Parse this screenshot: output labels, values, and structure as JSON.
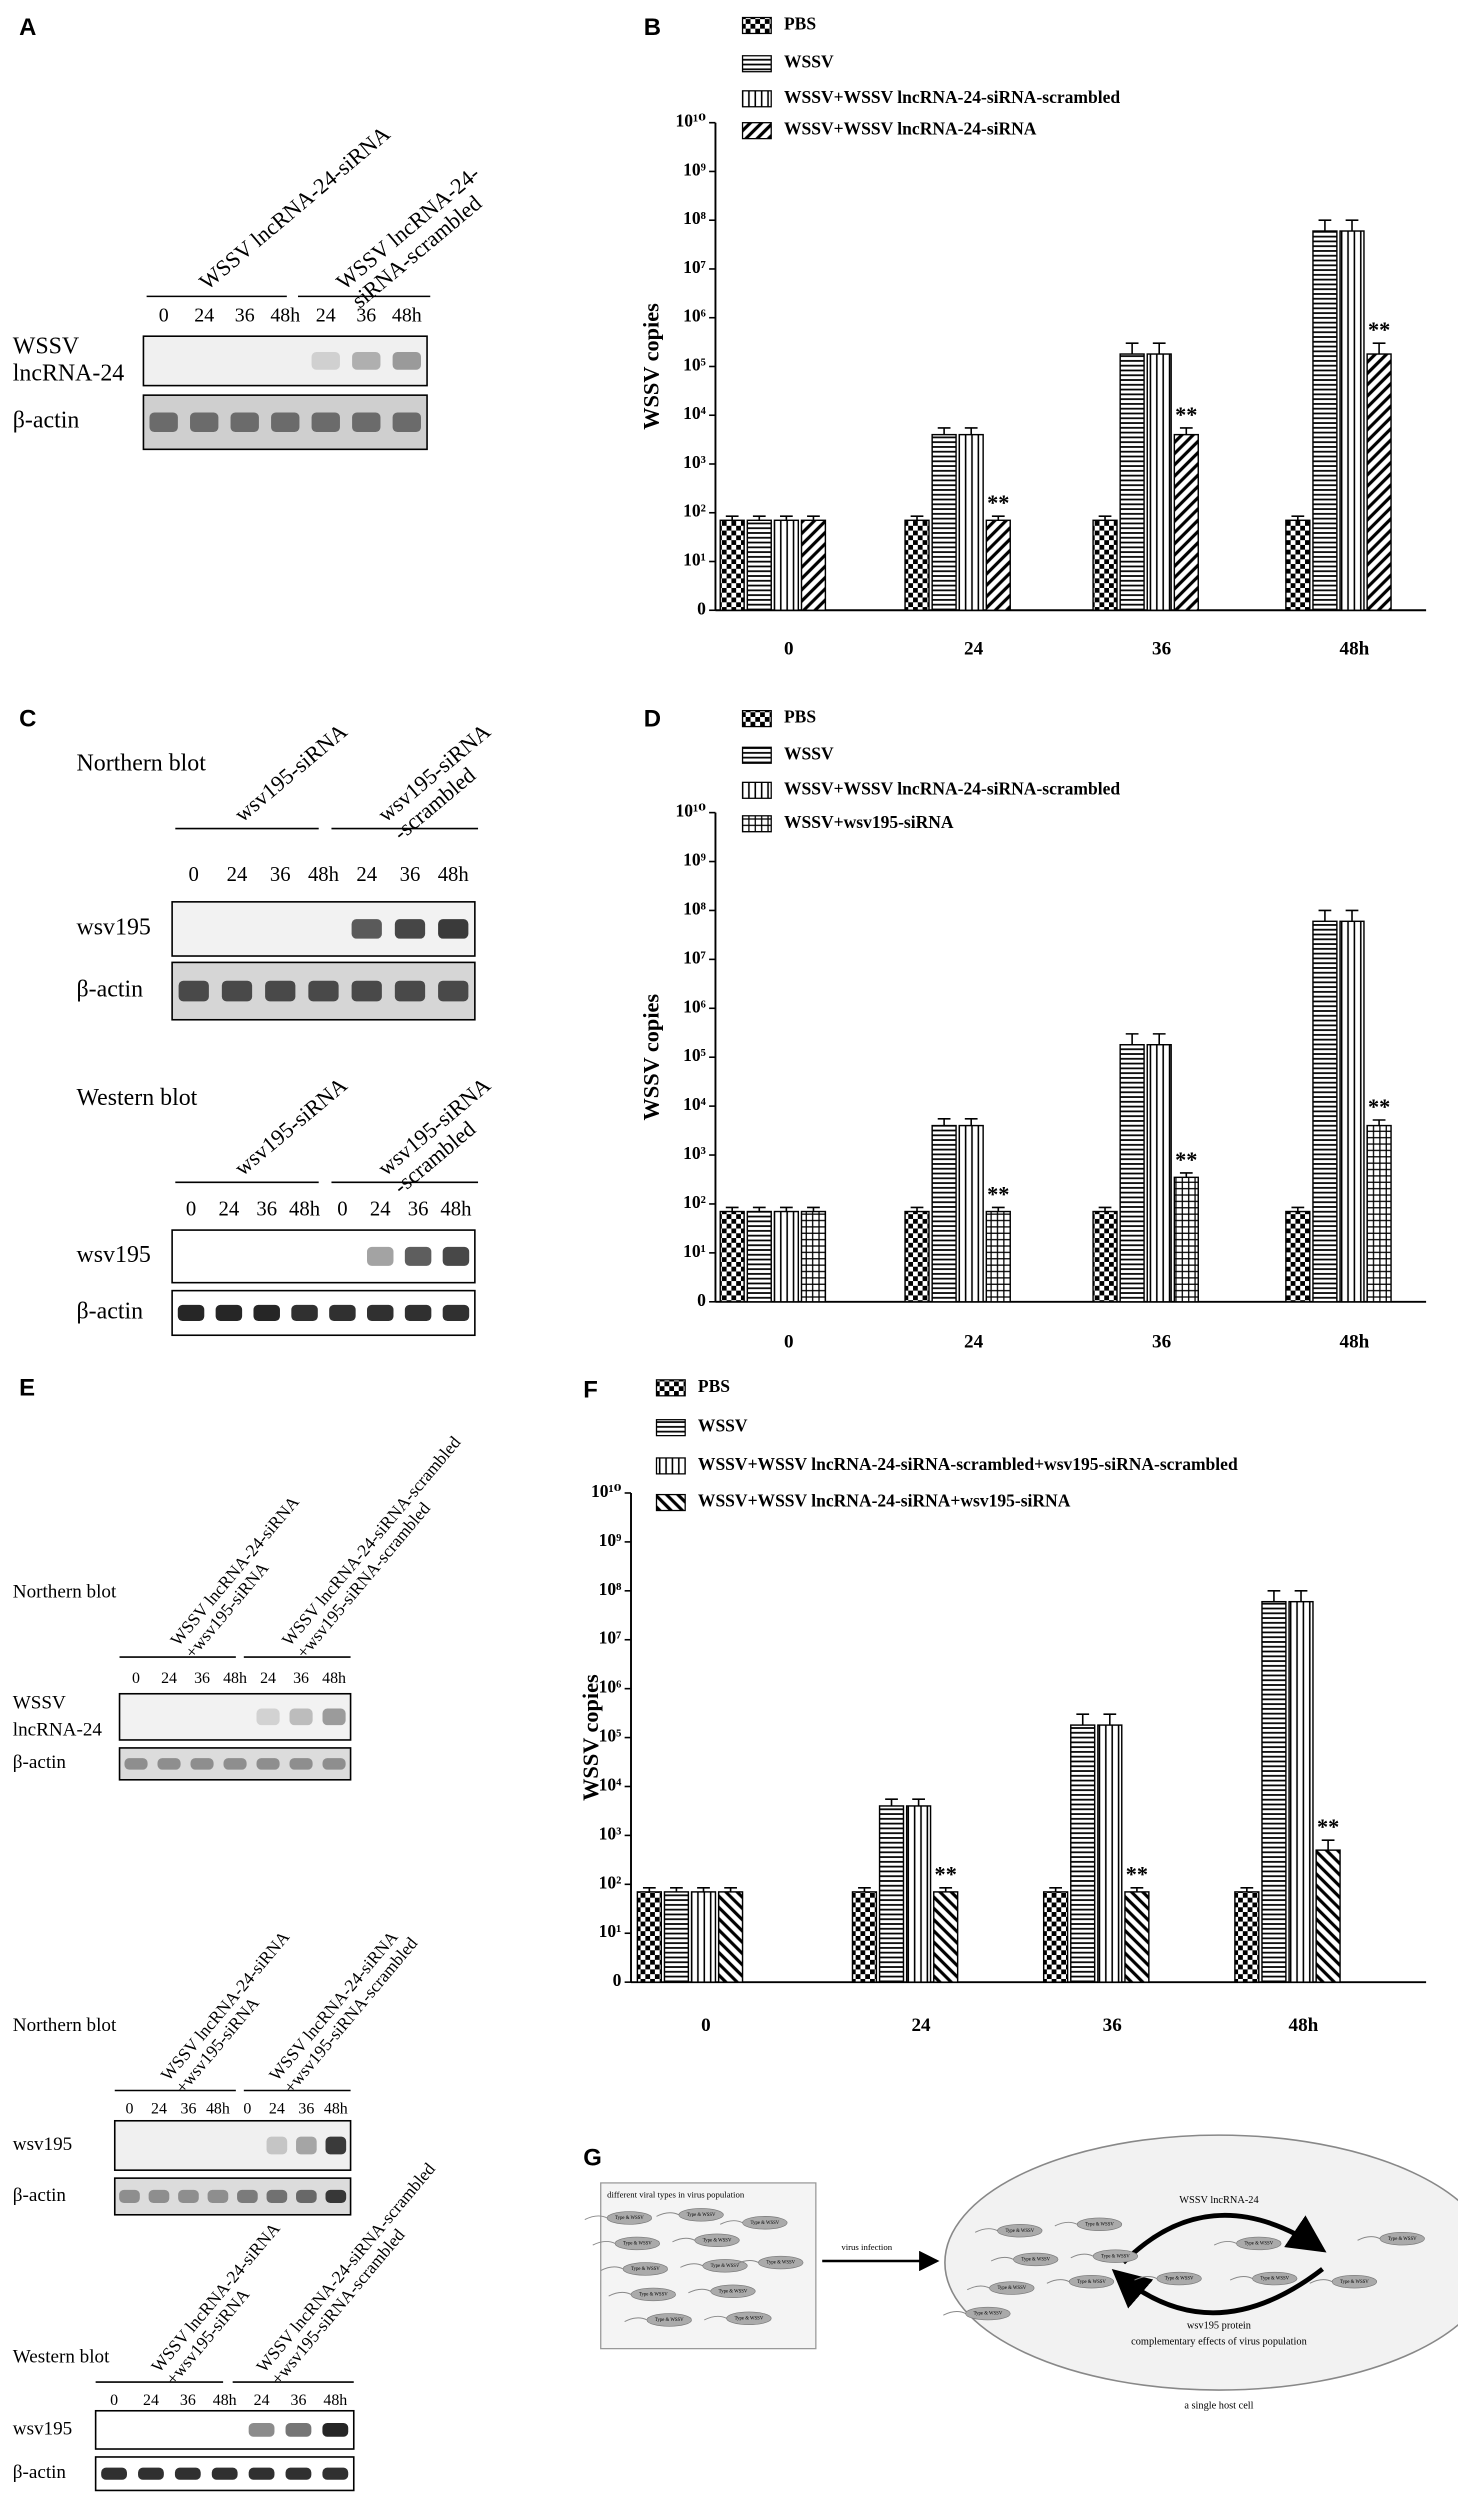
{
  "chart_data": [
    {
      "type": "bar",
      "panel_label": "B",
      "y_label": "WSSV copies",
      "log": true,
      "categories": [
        "0",
        "24",
        "36",
        "48h"
      ],
      "ylim": [
        1,
        10000000000
      ],
      "yticks": [
        {
          "value": 1,
          "label": "0"
        },
        {
          "value": 10,
          "label": "10¹"
        },
        {
          "value": 100,
          "label": "10²"
        },
        {
          "value": 1000,
          "label": "10³"
        },
        {
          "value": 10000,
          "label": "10⁴"
        },
        {
          "value": 100000,
          "label": "10⁵"
        },
        {
          "value": 1000000,
          "label": "10⁶"
        },
        {
          "value": 10000000,
          "label": "10⁷"
        },
        {
          "value": 100000000,
          "label": "10⁸"
        },
        {
          "value": 1000000000,
          "label": "10⁹"
        },
        {
          "value": 10000000000,
          "label": "10¹⁰"
        }
      ],
      "series": [
        {
          "name": "PBS",
          "color": "#000000",
          "pattern": "checker",
          "values": [
            70,
            70,
            70,
            70
          ],
          "errors": [
            15,
            15,
            15,
            15
          ]
        },
        {
          "name": "WSSV",
          "color": "#000000",
          "pattern": "hlines",
          "values": [
            70,
            4000,
            180000,
            60000000
          ],
          "errors": [
            15,
            1500,
            120000,
            40000000
          ]
        },
        {
          "name": "WSSV+WSSV lncRNA-24-siRNA-scrambled",
          "color": "#000000",
          "pattern": "vlines",
          "values": [
            70,
            4000,
            180000,
            60000000
          ],
          "errors": [
            15,
            1500,
            120000,
            40000000
          ]
        },
        {
          "name": "WSSV+WSSV lncRNA-24-siRNA",
          "color": "#000000",
          "pattern": "diag",
          "values": [
            70,
            70,
            4000,
            180000
          ],
          "errors": [
            15,
            15,
            1500,
            120000
          ],
          "annotations": [
            null,
            "**",
            "**",
            "**"
          ]
        }
      ]
    },
    {
      "type": "bar",
      "panel_label": "D",
      "y_label": "WSSV copies",
      "log": true,
      "categories": [
        "0",
        "24",
        "36",
        "48h"
      ],
      "ylim": [
        1,
        10000000000
      ],
      "yticks": [
        {
          "value": 1,
          "label": "0"
        },
        {
          "value": 10,
          "label": "10¹"
        },
        {
          "value": 100,
          "label": "10²"
        },
        {
          "value": 1000,
          "label": "10³"
        },
        {
          "value": 10000,
          "label": "10⁴"
        },
        {
          "value": 100000,
          "label": "10⁵"
        },
        {
          "value": 1000000,
          "label": "10⁶"
        },
        {
          "value": 10000000,
          "label": "10⁷"
        },
        {
          "value": 100000000,
          "label": "10⁸"
        },
        {
          "value": 1000000000,
          "label": "10⁹"
        },
        {
          "value": 10000000000,
          "label": "10¹⁰"
        }
      ],
      "series": [
        {
          "name": "PBS",
          "color": "#000000",
          "pattern": "checker",
          "values": [
            70,
            70,
            70,
            70
          ],
          "errors": [
            15,
            15,
            15,
            15
          ]
        },
        {
          "name": "WSSV",
          "color": "#000000",
          "pattern": "hlines",
          "values": [
            70,
            4000,
            180000,
            60000000
          ],
          "errors": [
            15,
            1500,
            120000,
            40000000
          ]
        },
        {
          "name": "WSSV+WSSV lncRNA-24-siRNA-scrambled",
          "color": "#000000",
          "pattern": "vlines",
          "values": [
            70,
            4000,
            180000,
            60000000
          ],
          "errors": [
            15,
            1500,
            120000,
            40000000
          ]
        },
        {
          "name": "WSSV+wsv195-siRNA",
          "color": "#000000",
          "pattern": "grid",
          "values": [
            70,
            70,
            350,
            4000
          ],
          "errors": [
            15,
            15,
            80,
            1200
          ],
          "annotations": [
            null,
            "**",
            "**",
            "**"
          ]
        }
      ]
    },
    {
      "type": "bar",
      "panel_label": "F",
      "y_label": "WSSV copies",
      "log": true,
      "categories": [
        "0",
        "24",
        "36",
        "48h"
      ],
      "ylim": [
        1,
        10000000000
      ],
      "yticks": [
        {
          "value": 1,
          "label": "0"
        },
        {
          "value": 10,
          "label": "10¹"
        },
        {
          "value": 100,
          "label": "10²"
        },
        {
          "value": 1000,
          "label": "10³"
        },
        {
          "value": 10000,
          "label": "10⁴"
        },
        {
          "value": 100000,
          "label": "10⁵"
        },
        {
          "value": 1000000,
          "label": "10⁶"
        },
        {
          "value": 10000000,
          "label": "10⁷"
        },
        {
          "value": 100000000,
          "label": "10⁸"
        },
        {
          "value": 1000000000,
          "label": "10⁹"
        },
        {
          "value": 10000000000,
          "label": "10¹⁰"
        }
      ],
      "series": [
        {
          "name": "PBS",
          "color": "#000000",
          "pattern": "checker",
          "values": [
            70,
            70,
            70,
            70
          ],
          "errors": [
            15,
            15,
            15,
            15
          ]
        },
        {
          "name": "WSSV",
          "color": "#000000",
          "pattern": "hlines",
          "values": [
            70,
            4000,
            180000,
            60000000
          ],
          "errors": [
            15,
            1500,
            120000,
            40000000
          ]
        },
        {
          "name": "WSSV+WSSV lncRNA-24-siRNA-scrambled+wsv195-siRNA-scrambled",
          "color": "#000000",
          "pattern": "vlines",
          "values": [
            70,
            4000,
            180000,
            60000000
          ],
          "errors": [
            15,
            1500,
            120000,
            40000000
          ]
        },
        {
          "name": "WSSV+WSSV lncRNA-24-siRNA+wsv195-siRNA",
          "color": "#000000",
          "pattern": "backdiag",
          "values": [
            70,
            70,
            70,
            500
          ],
          "errors": [
            15,
            15,
            15,
            300
          ],
          "annotations": [
            null,
            "**",
            "**",
            "**"
          ]
        }
      ]
    }
  ],
  "blots": [
    {
      "panel_label": "A",
      "groups": [
        [
          "WSSV lncRNA-24-siRNA"
        ],
        [
          "WSSV lncRNA-24-",
          "siRNA-scrambled"
        ]
      ],
      "lanes": [
        "0",
        "24",
        "36",
        "48h",
        "24",
        "36",
        "48h"
      ],
      "rows": [
        [
          "WSSV",
          "lncRNA-24"
        ],
        [
          "β-actin"
        ]
      ]
    },
    {
      "panel_label": "C",
      "title": "Northern blot",
      "groups": [
        [
          "wsv195-siRNA"
        ],
        [
          "wsv195-siRNA",
          "-scrambled"
        ]
      ],
      "lanes": [
        "0",
        "24",
        "36",
        "48h",
        "24",
        "36",
        "48h"
      ],
      "rows": [
        [
          "wsv195"
        ],
        [
          "β-actin"
        ]
      ]
    },
    {
      "title": "Western blot",
      "groups": [
        [
          "wsv195-siRNA"
        ],
        [
          "wsv195-siRNA",
          "-scrambled"
        ]
      ],
      "lanes": [
        "0",
        "24",
        "36",
        "48h",
        "0",
        "24",
        "36",
        "48h"
      ],
      "rows": [
        [
          "wsv195"
        ],
        [
          "β-actin"
        ]
      ]
    },
    {
      "panel_label": "E",
      "title": "Northern blot",
      "groups": [
        [
          "WSSV lncRNA-24-siRNA",
          "+wsv195-siRNA"
        ],
        [
          "WSSV lncRNA-24-siRNA-scrambled",
          "+wsv195-siRNA-scrambled"
        ]
      ],
      "lanes": [
        "0",
        "24",
        "36",
        "48h",
        "24",
        "36",
        "48h"
      ],
      "rows": [
        [
          "WSSV",
          "lncRNA-24"
        ],
        [
          "β-actin"
        ]
      ]
    },
    {
      "title": "Northern blot",
      "groups": [
        [
          "WSSV lncRNA-24-siRNA",
          "+wsv195-siRNA"
        ],
        [
          "WSSV lncRNA-24-siRNA",
          "+wsv195-siRNA-scrambled"
        ]
      ],
      "lanes": [
        "0",
        "24",
        "36",
        "48h",
        "0",
        "24",
        "36",
        "48h"
      ],
      "rows": [
        [
          "wsv195"
        ],
        [
          "β-actin"
        ]
      ]
    },
    {
      "title": "Western blot",
      "groups": [
        [
          "WSSV lncRNA-24-siRNA",
          "+wsv195-siRNA"
        ],
        [
          "WSSV lncRNA-24-siRNA-scrambled",
          "+wsv195-siRNA-scrambled"
        ]
      ],
      "lanes": [
        "0",
        "24",
        "36",
        "48h",
        "24",
        "36",
        "48h"
      ],
      "rows": [
        [
          "wsv195"
        ],
        [
          "β-actin"
        ]
      ]
    }
  ],
  "diagram": {
    "panel_label": "G",
    "left_caption": "different viral types in virus population",
    "arrow_label": "virus infection",
    "top_label": "WSSV lncRNA-24",
    "bottom_label": "wsv195 protein",
    "effect_label": "complementary effects of virus population",
    "cell_label": "a single host cell",
    "virus_label": "Type & WSSV"
  }
}
